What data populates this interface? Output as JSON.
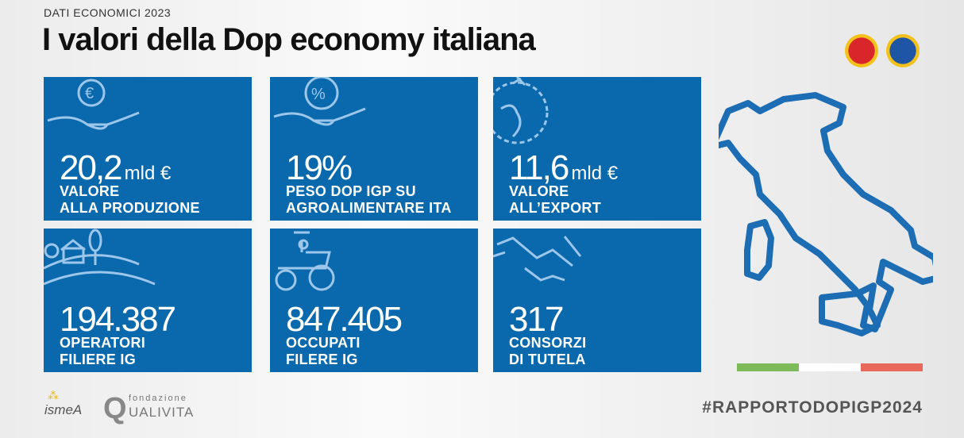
{
  "header": {
    "subtitle": "DATI ECONOMICI 2023",
    "title": "I valori della Dop economy italiana"
  },
  "tiles": [
    {
      "value": "20,2",
      "unit": "mld €",
      "label1": "VALORE",
      "label2": "ALLA PRODUZIONE",
      "icon": "euro-hand-icon"
    },
    {
      "value": "19%",
      "unit": "",
      "label1": "PESO DOP IGP SU",
      "label2": "AGROALIMENTARE ITA",
      "icon": "percent-hand-icon"
    },
    {
      "value": "11,6",
      "unit": "mld €",
      "label1": "VALORE",
      "label2": "ALL’EXPORT",
      "icon": "globe-plane-icon"
    },
    {
      "value": "194.387",
      "unit": "",
      "label1": "OPERATORI",
      "label2": "FILIERE IG",
      "icon": "farm-icon"
    },
    {
      "value": "847.405",
      "unit": "",
      "label1": "OCCUPATI",
      "label2": "FILERE IG",
      "icon": "tractor-icon"
    },
    {
      "value": "317",
      "unit": "",
      "label1": "CONSORZI",
      "label2": "DI TUTELA",
      "icon": "handshake-icon"
    }
  ],
  "logos": {
    "ismea": "ismeA",
    "qualivita_top": "fondazione",
    "qualivita": "UALIVITA",
    "qualivita_q": "Q"
  },
  "hashtag": "#RAPPORTODOPIGP2024",
  "colors": {
    "tile": "#0a69ad",
    "green": "#7dbb5a",
    "white": "#ffffff",
    "red": "#e8695c"
  }
}
